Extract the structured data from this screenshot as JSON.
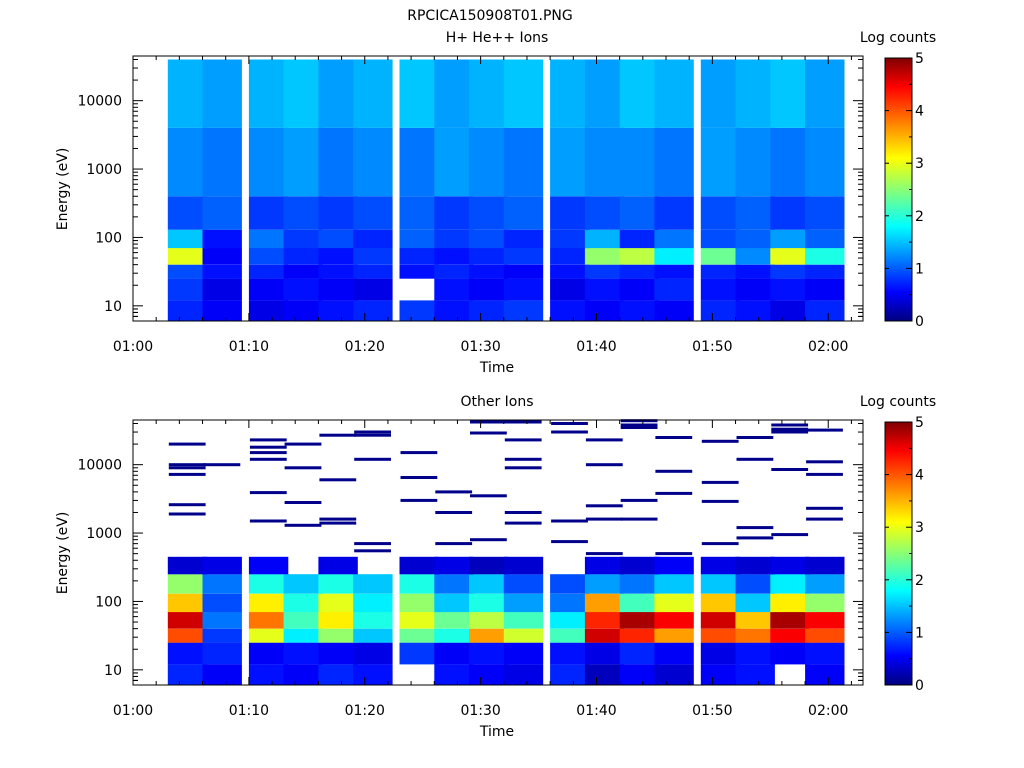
{
  "figure_title": "RPCICA150908T01.PNG",
  "chart_data": [
    {
      "type": "heatmap",
      "title": "H+ He++ Ions",
      "xlabel": "Time",
      "ylabel": "Energy (eV)",
      "y_scale": "log",
      "ylim": [
        6,
        45000
      ],
      "xlim": [
        "01:00",
        "02:03"
      ],
      "x_ticks": [
        "01:00",
        "01:10",
        "01:20",
        "01:30",
        "01:40",
        "01:50",
        "02:00"
      ],
      "y_ticks": [
        "10",
        "100",
        "1000",
        "10000"
      ],
      "colorbar": {
        "label": "Log counts",
        "range": [
          0,
          5
        ],
        "ticks": [
          "0",
          "1",
          "2",
          "3",
          "4",
          "5"
        ]
      },
      "time_bins": [
        "01:03",
        "01:06",
        "01:10",
        "01:13",
        "01:16",
        "01:19",
        "01:23",
        "01:26",
        "01:29",
        "01:32",
        "01:36",
        "01:39",
        "01:42",
        "01:45",
        "01:49",
        "01:52",
        "01:55",
        "01:58"
      ],
      "energy_bands": [
        {
          "range": [
            6,
            12
          ],
          "levels": [
            0.8,
            0.6,
            0.5,
            0.6,
            0.7,
            0.8,
            0.9,
            0.7,
            0.8,
            0.9,
            0.7,
            0.6,
            0.7,
            0.6,
            0.8,
            0.7,
            0.5,
            0.8
          ]
        },
        {
          "range": [
            12,
            25
          ],
          "levels": [
            0.9,
            0.5,
            0.6,
            0.7,
            0.6,
            0.5,
            null,
            0.7,
            0.6,
            0.7,
            0.5,
            0.7,
            0.6,
            0.8,
            0.7,
            0.6,
            0.7,
            0.6
          ]
        },
        {
          "range": [
            25,
            40
          ],
          "levels": [
            1.0,
            0.7,
            0.8,
            0.6,
            0.7,
            0.8,
            0.7,
            0.8,
            0.7,
            0.6,
            0.7,
            0.9,
            0.8,
            0.7,
            0.8,
            0.7,
            0.9,
            0.8
          ]
        },
        {
          "range": [
            40,
            70
          ],
          "levels": [
            3.0,
            0.6,
            1.0,
            0.8,
            0.7,
            0.9,
            0.8,
            0.7,
            0.8,
            0.9,
            0.8,
            2.6,
            2.8,
            1.8,
            2.4,
            1.3,
            3.0,
            2.0
          ]
        },
        {
          "range": [
            70,
            130
          ],
          "levels": [
            1.6,
            0.7,
            1.2,
            0.9,
            1.0,
            0.8,
            1.1,
            0.9,
            1.0,
            0.8,
            0.9,
            1.5,
            0.8,
            1.2,
            1.0,
            1.1,
            1.4,
            1.1
          ]
        },
        {
          "range": [
            130,
            400
          ],
          "levels": [
            1.0,
            1.1,
            0.9,
            1.0,
            0.9,
            1.0,
            1.1,
            0.9,
            1.0,
            1.1,
            0.9,
            1.0,
            1.1,
            0.9,
            1.0,
            1.1,
            0.9,
            1.0
          ]
        },
        {
          "range": [
            400,
            4000
          ],
          "levels": [
            1.3,
            1.2,
            1.3,
            1.4,
            1.2,
            1.3,
            1.2,
            1.4,
            1.3,
            1.2,
            1.4,
            1.3,
            1.3,
            1.2,
            1.4,
            1.3,
            1.2,
            1.3
          ]
        },
        {
          "range": [
            4000,
            40000
          ],
          "levels": [
            1.5,
            1.4,
            1.5,
            1.6,
            1.4,
            1.5,
            1.6,
            1.4,
            1.5,
            1.6,
            1.5,
            1.4,
            1.6,
            1.5,
            1.4,
            1.5,
            1.6,
            1.4
          ]
        }
      ]
    },
    {
      "type": "heatmap",
      "title": "Other Ions",
      "xlabel": "Time",
      "ylabel": "Energy (eV)",
      "y_scale": "log",
      "ylim": [
        6,
        45000
      ],
      "xlim": [
        "01:00",
        "02:03"
      ],
      "x_ticks": [
        "01:00",
        "01:10",
        "01:20",
        "01:30",
        "01:40",
        "01:50",
        "02:00"
      ],
      "y_ticks": [
        "10",
        "100",
        "1000",
        "10000"
      ],
      "colorbar": {
        "label": "Log counts",
        "range": [
          0,
          5
        ],
        "ticks": [
          "0",
          "1",
          "2",
          "3",
          "4",
          "5"
        ]
      },
      "time_bins": [
        "01:03",
        "01:06",
        "01:10",
        "01:13",
        "01:16",
        "01:19",
        "01:23",
        "01:26",
        "01:29",
        "01:32",
        "01:36",
        "01:39",
        "01:42",
        "01:45",
        "01:49",
        "01:52",
        "01:55",
        "01:58"
      ],
      "energy_bands": [
        {
          "range": [
            6,
            12
          ],
          "levels": [
            0.8,
            0.6,
            0.7,
            0.6,
            0.8,
            0.7,
            null,
            0.7,
            0.6,
            0.5,
            0.8,
            0.3,
            0.6,
            0.4,
            0.6,
            0.7,
            null,
            0.6
          ]
        },
        {
          "range": [
            12,
            25
          ],
          "levels": [
            0.7,
            0.8,
            0.6,
            0.7,
            0.6,
            0.5,
            0.9,
            0.6,
            0.7,
            0.6,
            0.7,
            0.5,
            0.8,
            0.6,
            0.5,
            0.7,
            0.6,
            0.7
          ]
        },
        {
          "range": [
            25,
            40
          ],
          "levels": [
            4.0,
            0.9,
            3.0,
            1.8,
            2.6,
            1.6,
            2.4,
            2.0,
            3.6,
            2.9,
            2.2,
            4.6,
            4.2,
            3.6,
            4.0,
            3.8,
            4.4,
            4.0
          ]
        },
        {
          "range": [
            40,
            70
          ],
          "levels": [
            4.6,
            1.2,
            3.8,
            2.2,
            3.2,
            2.0,
            3.0,
            2.4,
            2.8,
            2.2,
            1.8,
            4.2,
            4.8,
            4.4,
            4.6,
            3.4,
            4.8,
            4.4
          ]
        },
        {
          "range": [
            70,
            130
          ],
          "levels": [
            3.4,
            1.0,
            3.2,
            2.0,
            3.0,
            1.8,
            2.6,
            1.6,
            2.0,
            1.4,
            1.2,
            3.6,
            2.2,
            3.0,
            3.4,
            1.6,
            3.2,
            2.6
          ]
        },
        {
          "range": [
            130,
            250
          ],
          "levels": [
            2.6,
            1.2,
            2.0,
            1.6,
            2.0,
            1.6,
            2.0,
            1.2,
            1.6,
            1.0,
            1.0,
            1.4,
            1.2,
            1.6,
            1.6,
            1.0,
            1.8,
            1.4
          ]
        },
        {
          "range": [
            250,
            450
          ],
          "levels": [
            0.4,
            0.5,
            0.6,
            null,
            0.5,
            null,
            0.4,
            0.5,
            0.3,
            0.4,
            null,
            0.5,
            0.4,
            0.6,
            0.5,
            0.4,
            0.5,
            0.4
          ]
        }
      ],
      "sparse_high_energy_counts_eV": [
        [
          2600,
          1900,
          10000,
          9000,
          7200,
          20000
        ],
        [
          10000
        ],
        [
          23000,
          18000,
          15000,
          12000,
          3900,
          1500
        ],
        [
          20000,
          9000,
          2800,
          1300
        ],
        [
          27000,
          6000,
          1600,
          1400
        ],
        [
          30000,
          27000,
          12000,
          700,
          550
        ],
        [
          15000,
          6500,
          3000
        ],
        [
          4000,
          2000,
          700
        ],
        [
          42000,
          29000,
          3500,
          800
        ],
        [
          42000,
          23000,
          12000,
          9000,
          2000,
          1400
        ],
        [
          40000,
          30000,
          1500,
          750
        ],
        [
          23000,
          10000,
          2500,
          1600,
          500
        ],
        [
          44000,
          38000,
          35000,
          3000,
          1600
        ],
        [
          25000,
          8000,
          3800,
          500
        ],
        [
          22000,
          5500,
          2900,
          700
        ],
        [
          25000,
          12000,
          1200,
          850
        ],
        [
          38000,
          33000,
          30000,
          8500,
          950
        ],
        [
          32000,
          11000,
          7200,
          2300,
          1600
        ]
      ]
    }
  ]
}
